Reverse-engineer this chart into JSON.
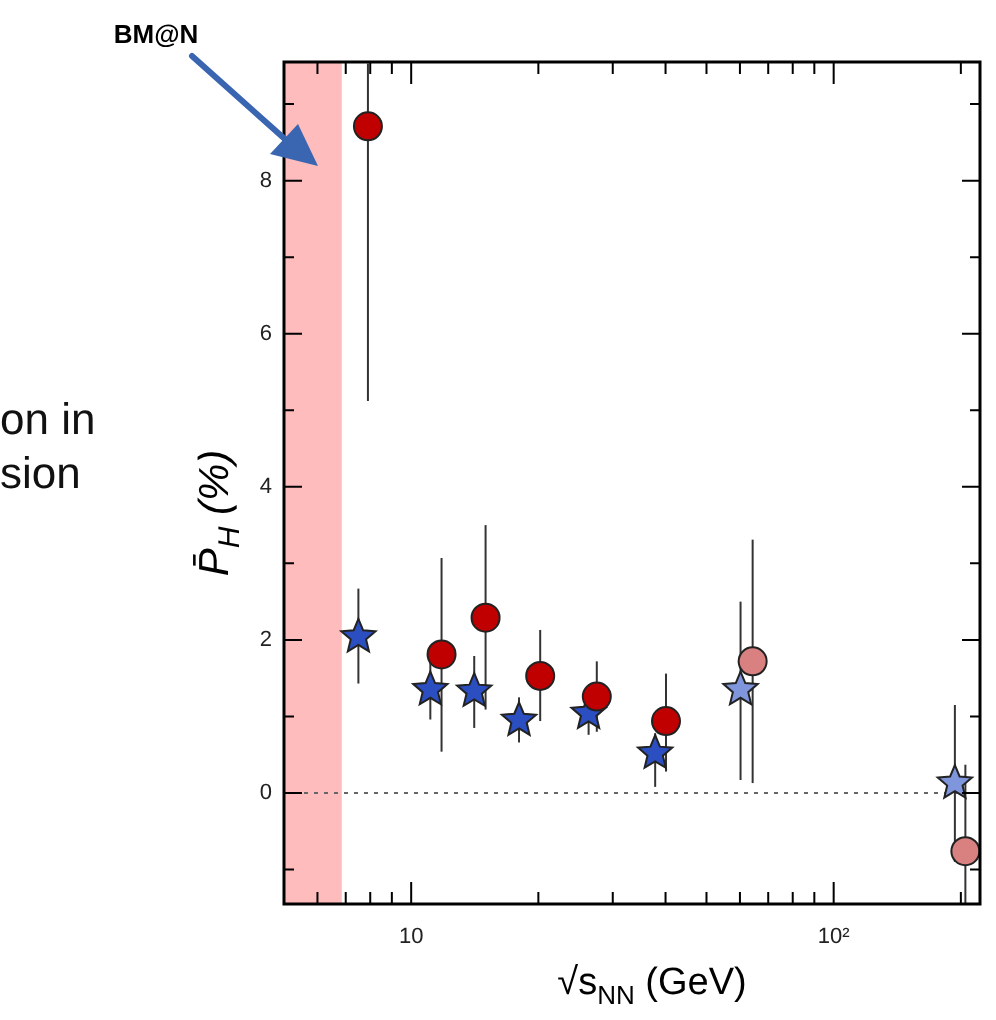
{
  "chart_data": {
    "type": "scatter",
    "xlabel": "√s$_{NN}$ (GeV)",
    "ylabel": "P̄$_{H}$ (%)",
    "log": "x",
    "xlim": [
      5,
      222
    ],
    "ylim": [
      -1.45,
      9.55
    ],
    "xticks": [
      {
        "value": 6,
        "label": null
      },
      {
        "value": 7,
        "label": null
      },
      {
        "value": 8,
        "label": null
      },
      {
        "value": 9,
        "label": null
      },
      10,
      {
        "value": 20,
        "label": null
      },
      {
        "value": 30,
        "label": null
      },
      {
        "value": 40,
        "label": null
      },
      {
        "value": 50,
        "label": null
      },
      {
        "value": 60,
        "label": null
      },
      {
        "value": 70,
        "label": null
      },
      {
        "value": 80,
        "label": null
      },
      {
        "value": 90,
        "label": null
      },
      {
        "value": 100,
        "label": "10²"
      },
      {
        "value": 200,
        "label": null
      }
    ],
    "yticks": [
      {
        "value": -1,
        "label": null
      },
      0,
      {
        "value": 1,
        "label": null
      },
      2,
      {
        "value": 3,
        "label": null
      },
      4,
      {
        "value": 5,
        "label": null
      },
      6,
      {
        "value": 7,
        "label": null
      },
      8,
      {
        "value": 9,
        "label": null
      }
    ],
    "grid": false,
    "legend": false,
    "series": [
      {
        "color": "#2b4fc0",
        "marker": "star",
        "x": [
          7.5,
          11.1,
          14.1,
          18.0,
          26.3,
          37.8
        ],
        "values": [
          2.04,
          1.35,
          1.33,
          0.95,
          1.04,
          0.52
        ],
        "errors": [
          [
            1.43,
            2.67
          ],
          [
            0.96,
            1.88
          ],
          [
            0.85,
            1.79
          ],
          [
            0.66,
            1.25
          ],
          [
            0.76,
            1.35
          ],
          [
            0.08,
            0.78
          ]
        ]
      },
      {
        "color": "#c00000",
        "marker": "circle",
        "x": [
          7.9,
          11.8,
          15.0,
          20.2,
          27.5,
          40.1
        ],
        "values": [
          8.71,
          1.81,
          2.29,
          1.53,
          1.26,
          0.94
        ],
        "errors": [
          [
            5.12,
            9.53
          ],
          [
            0.54,
            3.07
          ],
          [
            1.09,
            3.5
          ],
          [
            0.94,
            2.13
          ],
          [
            0.8,
            1.72
          ],
          [
            0.28,
            1.56
          ]
        ]
      },
      {
        "color": "#7f95dc",
        "marker": "star",
        "x": [
          60.2,
          193.6
        ],
        "values": [
          1.35,
          0.13
        ],
        "errors": [
          [
            0.17,
            2.5
          ],
          [
            -0.9,
            1.15
          ]
        ]
      },
      {
        "color": "#d98080",
        "marker": "circle",
        "x": [
          64.3,
          205
        ],
        "values": [
          1.72,
          -0.76
        ],
        "errors": [
          [
            0.13,
            3.31
          ],
          [
            -1.45,
            0.37
          ]
        ]
      }
    ],
    "ref_lines": [
      {
        "axis": "y",
        "value": 0,
        "line_style": "dotted",
        "color": "#666666"
      }
    ],
    "bands": [
      {
        "axis": "x",
        "from": 5,
        "to": 6.85,
        "color": "#ffbcbc"
      }
    ],
    "annotations": [
      "BM@N",
      "on in",
      "sion"
    ]
  }
}
